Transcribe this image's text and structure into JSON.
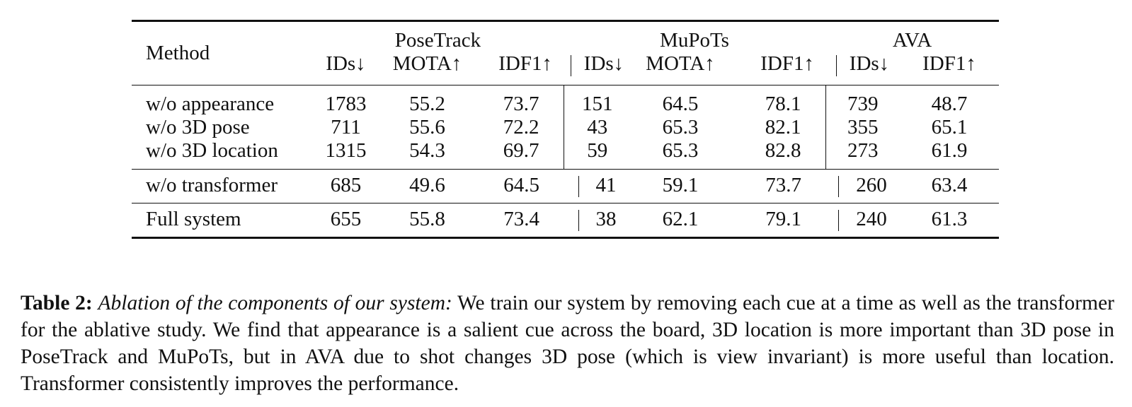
{
  "table": {
    "method_header": "Method",
    "groups": [
      "PoseTrack",
      "MuPoTs",
      "AVA"
    ],
    "subheaders": [
      "IDs↓",
      "MOTA↑",
      "IDF1↑",
      "IDs↓",
      "MOTA↑",
      "IDF1↑",
      "IDs↓",
      "IDF1↑"
    ],
    "block1": [
      {
        "method": "w/o appearance",
        "values": [
          "1783",
          "55.2",
          "73.7",
          "151",
          "64.5",
          "78.1",
          "739",
          "48.7"
        ]
      },
      {
        "method": "w/o 3D pose",
        "values": [
          "711",
          "55.6",
          "72.2",
          "43",
          "65.3",
          "82.1",
          "355",
          "65.1"
        ]
      },
      {
        "method": "w/o 3D location",
        "values": [
          "1315",
          "54.3",
          "69.7",
          "59",
          "65.3",
          "82.8",
          "273",
          "61.9"
        ]
      }
    ],
    "block2": [
      {
        "method": "w/o transformer",
        "values": [
          "685",
          "49.6",
          "64.5",
          "41",
          "59.1",
          "73.7",
          "260",
          "63.4"
        ]
      }
    ],
    "block3": [
      {
        "method": "Full system",
        "values": [
          "655",
          "55.8",
          "73.4",
          "38",
          "62.1",
          "79.1",
          "240",
          "61.3"
        ]
      }
    ]
  },
  "caption": {
    "label": "Table 2:",
    "title": "Ablation of the components of our system:",
    "text": " We train our system by removing each cue at a time as well as the transformer for the ablative study. We find that appearance is a salient cue across the board, 3D location is more important than 3D pose in PoseTrack and MuPoTs, but in AVA due to shot changes 3D pose (which is view invariant) is more useful than location. Transformer consistently improves the performance."
  }
}
